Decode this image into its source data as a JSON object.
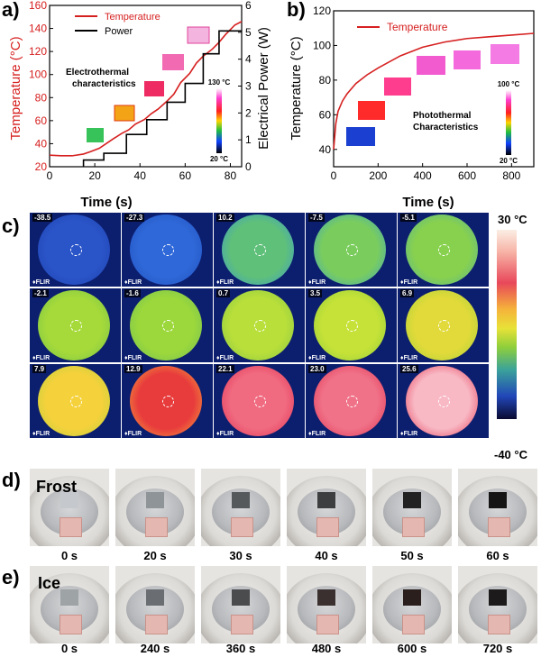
{
  "panels": {
    "a": "a)",
    "b": "b)",
    "c": "c)",
    "d": "d)",
    "e": "e)"
  },
  "colors": {
    "temperature": "#d62020",
    "power": "#000000",
    "axis_left_a": "#d62020"
  },
  "chart_data": [
    {
      "type": "line",
      "id": "a",
      "xlabel": "Time (s)",
      "ylabel": "Temperature (°C)",
      "y2label": "Electrical Power (W)",
      "xlim": [
        0,
        85
      ],
      "ylim": [
        20,
        160
      ],
      "y2lim": [
        0,
        6
      ],
      "xticks": [
        0,
        20,
        40,
        60,
        80
      ],
      "yticks": [
        20,
        40,
        60,
        80,
        100,
        120,
        140,
        160
      ],
      "y2ticks": [
        0,
        1,
        2,
        3,
        4,
        5,
        6
      ],
      "legend": [
        "Temperature",
        "Power"
      ],
      "annotation": [
        "Electrothermal",
        "characteristics"
      ],
      "colorbar": {
        "max": "130 °C",
        "min": "20 °C"
      },
      "series": [
        {
          "name": "Temperature",
          "color": "#d62020",
          "x": [
            0,
            5,
            10,
            15,
            18,
            22,
            25,
            28,
            32,
            35,
            38,
            42,
            45,
            48,
            52,
            55,
            58,
            62,
            65,
            68,
            72,
            75,
            78,
            82,
            85
          ],
          "y": [
            30,
            29.5,
            29.5,
            31,
            33,
            36,
            40,
            44,
            49,
            52,
            57,
            61,
            66,
            70,
            77,
            83,
            93,
            101,
            110,
            116,
            122,
            128,
            135,
            143,
            146
          ]
        },
        {
          "name": "Power",
          "color": "#000000",
          "x": [
            15,
            15,
            24,
            24,
            34,
            34,
            43,
            43,
            52,
            52,
            60,
            60,
            68,
            68,
            75,
            75,
            85
          ],
          "y": [
            0,
            0.25,
            0.25,
            0.5,
            0.5,
            1.2,
            1.2,
            1.75,
            1.75,
            2.4,
            2.4,
            3.1,
            3.1,
            4.2,
            4.2,
            5.05,
            5.05
          ]
        }
      ]
    },
    {
      "type": "line",
      "id": "b",
      "xlabel": "Time (s)",
      "ylabel": "Temperature (°C)",
      "xlim": [
        0,
        900
      ],
      "ylim": [
        30,
        120
      ],
      "xticks": [
        0,
        200,
        400,
        600,
        800
      ],
      "yticks": [
        40,
        60,
        80,
        100,
        120
      ],
      "legend": [
        "Temperature"
      ],
      "annotation": [
        "Photothermal",
        "Characteristics"
      ],
      "colorbar": {
        "max": "100 °C",
        "min": "20 °C"
      },
      "series": [
        {
          "name": "Temperature",
          "color": "#d62020",
          "x": [
            0,
            10,
            20,
            40,
            60,
            100,
            150,
            200,
            300,
            400,
            500,
            600,
            700,
            800,
            900
          ],
          "y": [
            40,
            55,
            62,
            68,
            72,
            78,
            83,
            87,
            94,
            99,
            102,
            104,
            105,
            106,
            107
          ]
        }
      ]
    }
  ],
  "panel_c": {
    "scale_max": "30 °C",
    "scale_min": "-40 °C",
    "brand": "♦FLIR",
    "cells": [
      {
        "t": "-38.5",
        "c1": "#2a55c8",
        "c2": "#1d40b0"
      },
      {
        "t": "-27.3",
        "c1": "#2f68d8",
        "c2": "#2050c0"
      },
      {
        "t": "10.2",
        "c1": "#5fc07a",
        "c2": "#3a9acf"
      },
      {
        "t": "-7.5",
        "c1": "#7acd5d",
        "c2": "#3fa5c6"
      },
      {
        "t": "-5.1",
        "c1": "#88d14e",
        "c2": "#55b29a"
      },
      {
        "t": "-2.1",
        "c1": "#a6da3a",
        "c2": "#72c04a"
      },
      {
        "t": "-1.6",
        "c1": "#9cd83c",
        "c2": "#6fbd56"
      },
      {
        "t": "0.7",
        "c1": "#b9df3a",
        "c2": "#83c546"
      },
      {
        "t": "3.5",
        "c1": "#c6e238",
        "c2": "#8ecb3c"
      },
      {
        "t": "6.9",
        "c1": "#e1da3a",
        "c2": "#a6d03a"
      },
      {
        "t": "7.9",
        "c1": "#f5d13c",
        "c2": "#b9d23a"
      },
      {
        "t": "12.9",
        "c1": "#e83b3c",
        "c2": "#f3b03a"
      },
      {
        "t": "22.1",
        "c1": "#f06a80",
        "c2": "#e2304f"
      },
      {
        "t": "23.0",
        "c1": "#f07288",
        "c2": "#e0304e"
      },
      {
        "t": "25.6",
        "c1": "#f8b8c4",
        "c2": "#e4334f"
      }
    ]
  },
  "panel_d": {
    "title": "Frost",
    "times": [
      "0 s",
      "20 s",
      "30 s",
      "40 s",
      "50 s",
      "60 s"
    ]
  },
  "panel_e": {
    "title": "Ice",
    "times": [
      "0 s",
      "240 s",
      "360 s",
      "480 s",
      "600 s",
      "720 s"
    ]
  }
}
